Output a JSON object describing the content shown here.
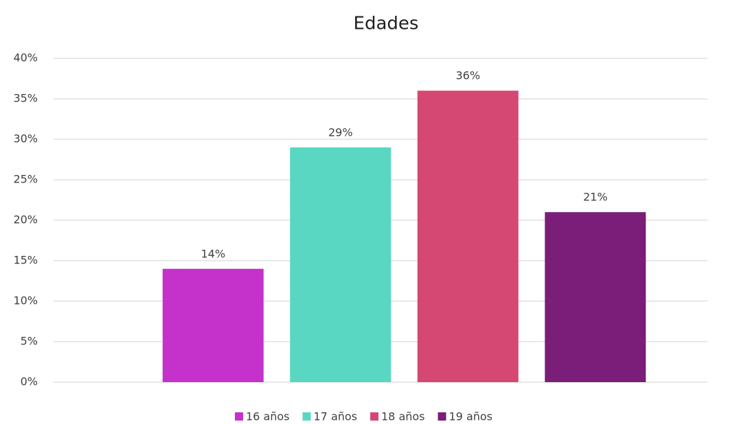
{
  "chart_data": {
    "type": "bar",
    "title": "Edades",
    "categories": [
      null
    ],
    "series": [
      {
        "name": "16 años",
        "color": "#c532cb",
        "values": [
          14
        ],
        "value_labels": [
          "14%"
        ]
      },
      {
        "name": "17 años",
        "color": "#59d7c2",
        "values": [
          29
        ],
        "value_labels": [
          "29%"
        ]
      },
      {
        "name": "18 años",
        "color": "#d44873",
        "values": [
          36
        ],
        "value_labels": [
          "36%"
        ]
      },
      {
        "name": "19 años",
        "color": "#7a1e7a",
        "values": [
          21
        ],
        "value_labels": [
          "21%"
        ]
      }
    ],
    "ylim": [
      0,
      40
    ],
    "yticks": [
      {
        "value": 0,
        "label": "0%"
      },
      {
        "value": 5,
        "label": "5%"
      },
      {
        "value": 10,
        "label": "10%"
      },
      {
        "value": 15,
        "label": "15%"
      },
      {
        "value": 20,
        "label": "20%"
      },
      {
        "value": 25,
        "label": "25%"
      },
      {
        "value": 30,
        "label": "30%"
      },
      {
        "value": 35,
        "label": "35%"
      },
      {
        "value": 40,
        "label": "40%"
      }
    ],
    "grid": true,
    "legend": "bottom"
  }
}
